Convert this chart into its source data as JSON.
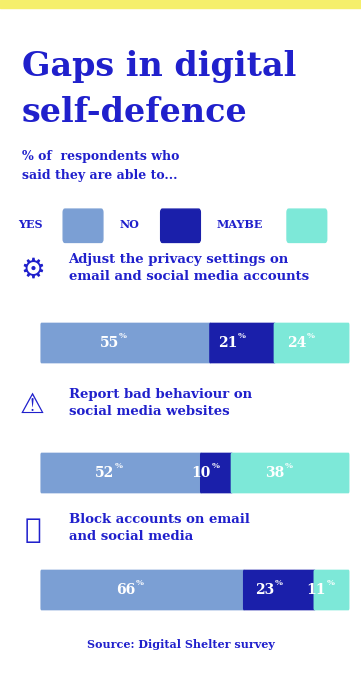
{
  "title_line1": "Gaps in digital",
  "title_line2": "self-defence",
  "subtitle": "% of  respondents who\nsaid they are able to...",
  "source": "Source: Digital Shelter survey",
  "bg_color": "#ffffff",
  "stripe_color": "#f5ef6b",
  "title_color": "#2020cc",
  "yes_color": "#7b9fd4",
  "no_color": "#1a1faa",
  "maybe_color": "#7de8d8",
  "categories": [
    {
      "icon": "gear",
      "label_line1": "Adjust the privacy settings on",
      "label_line2": "email and social media accounts",
      "yes": 55,
      "no": 21,
      "maybe": 24
    },
    {
      "icon": "warning",
      "label_line1": "Report bad behaviour on",
      "label_line2": "social media websites",
      "yes": 52,
      "no": 10,
      "maybe": 38
    },
    {
      "icon": "block",
      "label_line1": "Block accounts on email",
      "label_line2": "and social media",
      "yes": 66,
      "no": 23,
      "maybe": 11
    }
  ]
}
